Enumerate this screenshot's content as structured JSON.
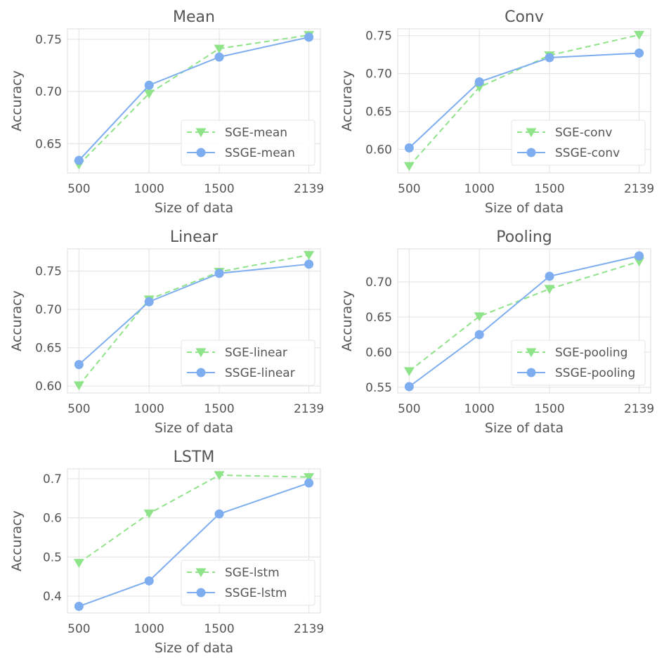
{
  "colors": {
    "sge": "#8fe388",
    "ssge": "#7eaef0",
    "text": "#555555",
    "grid": "#e6e6e6"
  },
  "chart_data": [
    {
      "type": "line",
      "title": "Mean",
      "xlabel": "Size of data",
      "ylabel": "Accuracy",
      "x": [
        500,
        1000,
        1500,
        2139
      ],
      "xticks": [
        "500",
        "1000",
        "1500",
        "2139"
      ],
      "yticks": [
        0.65,
        0.7,
        0.75
      ],
      "ytick_labels": [
        "0.65",
        "0.70",
        "0.75"
      ],
      "xlim": [
        418,
        2221
      ],
      "ylim": [
        0.622,
        0.76
      ],
      "grid": true,
      "legend_position": "lower-right",
      "series": [
        {
          "name": "SGE-mean",
          "key": "sge",
          "style": "dashed",
          "marker": "triangle-down",
          "values": [
            0.63,
            0.698,
            0.741,
            0.754
          ]
        },
        {
          "name": "SSGE-mean",
          "key": "ssge",
          "style": "solid",
          "marker": "circle",
          "values": [
            0.634,
            0.706,
            0.733,
            0.752
          ]
        }
      ]
    },
    {
      "type": "line",
      "title": "Conv",
      "xlabel": "Size of data",
      "ylabel": "Accuracy",
      "x": [
        500,
        1000,
        1500,
        2139
      ],
      "xticks": [
        "500",
        "1000",
        "1500",
        "2139"
      ],
      "yticks": [
        0.6,
        0.65,
        0.7,
        0.75
      ],
      "ytick_labels": [
        "0.60",
        "0.65",
        "0.70",
        "0.75"
      ],
      "xlim": [
        418,
        2221
      ],
      "ylim": [
        0.569,
        0.759
      ],
      "grid": true,
      "legend_position": "lower-right",
      "series": [
        {
          "name": "SGE-conv",
          "key": "sge",
          "style": "dashed",
          "marker": "triangle-down",
          "values": [
            0.578,
            0.682,
            0.724,
            0.751
          ]
        },
        {
          "name": "SSGE-conv",
          "key": "ssge",
          "style": "solid",
          "marker": "circle",
          "values": [
            0.602,
            0.689,
            0.721,
            0.727
          ]
        }
      ]
    },
    {
      "type": "line",
      "title": "Linear",
      "xlabel": "Size of data",
      "ylabel": "Accuracy",
      "x": [
        500,
        1000,
        1500,
        2139
      ],
      "xticks": [
        "500",
        "1000",
        "1500",
        "2139"
      ],
      "yticks": [
        0.6,
        0.65,
        0.7,
        0.75
      ],
      "ytick_labels": [
        "0.60",
        "0.65",
        "0.70",
        "0.75"
      ],
      "xlim": [
        418,
        2221
      ],
      "ylim": [
        0.591,
        0.779
      ],
      "grid": true,
      "legend_position": "lower-right",
      "series": [
        {
          "name": "SGE-linear",
          "key": "sge",
          "style": "dashed",
          "marker": "triangle-down",
          "values": [
            0.601,
            0.713,
            0.749,
            0.771
          ]
        },
        {
          "name": "SSGE-linear",
          "key": "ssge",
          "style": "solid",
          "marker": "circle",
          "values": [
            0.628,
            0.71,
            0.747,
            0.759
          ]
        }
      ]
    },
    {
      "type": "line",
      "title": "Pooling",
      "xlabel": "Size of data",
      "ylabel": "Accuracy",
      "x": [
        500,
        1000,
        1500,
        2139
      ],
      "xticks": [
        "500",
        "1000",
        "1500",
        "2139"
      ],
      "yticks": [
        0.55,
        0.6,
        0.65,
        0.7
      ],
      "ytick_labels": [
        "0.55",
        "0.60",
        "0.65",
        "0.70"
      ],
      "xlim": [
        418,
        2221
      ],
      "ylim": [
        0.542,
        0.747
      ],
      "grid": true,
      "legend_position": "lower-right",
      "series": [
        {
          "name": "SGE-pooling",
          "key": "sge",
          "style": "dashed",
          "marker": "triangle-down",
          "values": [
            0.573,
            0.651,
            0.69,
            0.729
          ]
        },
        {
          "name": "SSGE-pooling",
          "key": "ssge",
          "style": "solid",
          "marker": "circle",
          "values": [
            0.551,
            0.625,
            0.708,
            0.737
          ]
        }
      ]
    },
    {
      "type": "line",
      "title": "LSTM",
      "xlabel": "Size of data",
      "ylabel": "Accuracy",
      "x": [
        500,
        1000,
        1500,
        2139
      ],
      "xticks": [
        "500",
        "1000",
        "1500",
        "2139"
      ],
      "yticks": [
        0.4,
        0.5,
        0.6,
        0.7
      ],
      "ytick_labels": [
        "0.4",
        "0.5",
        "0.6",
        "0.7"
      ],
      "xlim": [
        418,
        2221
      ],
      "ylim": [
        0.357,
        0.725
      ],
      "grid": true,
      "legend_position": "lower-right",
      "series": [
        {
          "name": "SGE-lstm",
          "key": "sge",
          "style": "dashed",
          "marker": "triangle-down",
          "values": [
            0.485,
            0.611,
            0.709,
            0.704
          ]
        },
        {
          "name": "SSGE-lstm",
          "key": "ssge",
          "style": "solid",
          "marker": "circle",
          "values": [
            0.374,
            0.439,
            0.61,
            0.689
          ]
        }
      ]
    }
  ]
}
